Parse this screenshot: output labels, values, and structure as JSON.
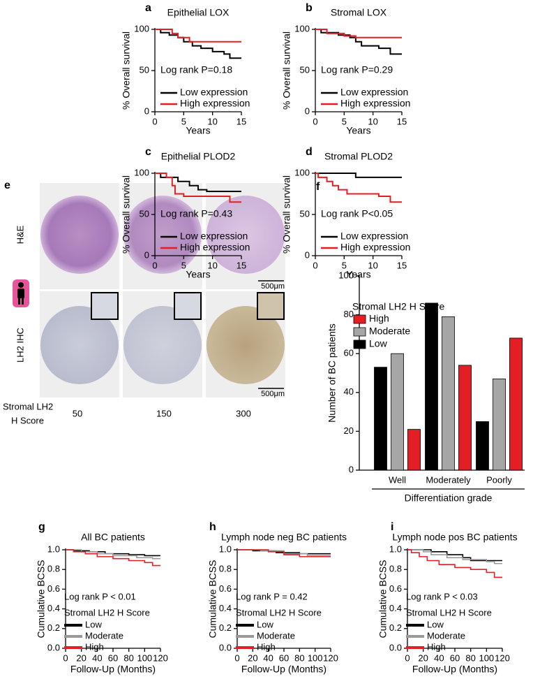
{
  "chart_data": [
    {
      "panel": "a",
      "type": "line",
      "title": "Epithelial LOX",
      "xlabel": "Years",
      "ylabel": "% Overall survival",
      "annotation": "Log rank P=0.18",
      "xlim": [
        0,
        15
      ],
      "xticks": [
        0,
        5,
        10,
        15
      ],
      "ylim": [
        0,
        100
      ],
      "yticks": [
        0,
        50,
        100
      ],
      "series": [
        {
          "name": "Low expression",
          "color": "#000000",
          "x": [
            0,
            1,
            1,
            2.5,
            2.5,
            4,
            4,
            5,
            5,
            6.5,
            6.5,
            8,
            8,
            10,
            10,
            12,
            12,
            13,
            13,
            15
          ],
          "values": [
            100,
            100,
            96,
            96,
            93,
            93,
            90,
            90,
            85,
            85,
            80,
            80,
            77,
            77,
            73,
            73,
            70,
            70,
            65,
            65
          ]
        },
        {
          "name": "High expression",
          "color": "#e31e24",
          "x": [
            0,
            3,
            3,
            4,
            4,
            6,
            6,
            15
          ],
          "values": [
            100,
            100,
            95,
            95,
            90,
            90,
            85,
            85
          ]
        }
      ]
    },
    {
      "panel": "b",
      "type": "line",
      "title": "Stromal LOX",
      "xlabel": "Years",
      "ylabel": "% Overall survival",
      "annotation": "Log rank P=0.29",
      "xlim": [
        0,
        15
      ],
      "xticks": [
        0,
        5,
        10,
        15
      ],
      "ylim": [
        0,
        100
      ],
      "yticks": [
        0,
        50,
        100
      ],
      "series": [
        {
          "name": "Low expression",
          "color": "#000000",
          "x": [
            0,
            1,
            1,
            4,
            4,
            6,
            6,
            7,
            7,
            8,
            8,
            11,
            11,
            13,
            13,
            15
          ],
          "values": [
            100,
            100,
            96,
            96,
            93,
            93,
            90,
            90,
            85,
            85,
            80,
            80,
            77,
            77,
            70,
            70
          ]
        },
        {
          "name": "High expression",
          "color": "#e31e24",
          "x": [
            0,
            2,
            2,
            5,
            5,
            7,
            7,
            15
          ],
          "values": [
            100,
            100,
            95,
            95,
            92,
            92,
            90,
            90
          ]
        }
      ]
    },
    {
      "panel": "c",
      "type": "line",
      "title": "Epithelial PLOD2",
      "xlabel": "Years",
      "ylabel": "% Overall survival",
      "annotation": "Log rank P=0.43",
      "xlim": [
        0,
        15
      ],
      "xticks": [
        0,
        5,
        10,
        15
      ],
      "ylim": [
        0,
        100
      ],
      "yticks": [
        0,
        50,
        100
      ],
      "series": [
        {
          "name": "Low expression",
          "color": "#000000",
          "x": [
            0,
            1,
            1,
            4,
            4,
            6,
            6,
            7.5,
            7.5,
            9,
            9,
            15
          ],
          "values": [
            100,
            100,
            95,
            95,
            90,
            90,
            85,
            85,
            80,
            80,
            78,
            78
          ]
        },
        {
          "name": "High expression",
          "color": "#e31e24",
          "x": [
            0,
            2,
            2,
            3,
            3,
            3.5,
            3.5,
            5,
            5,
            13,
            13,
            15
          ],
          "values": [
            100,
            100,
            95,
            95,
            85,
            85,
            75,
            75,
            72,
            72,
            65,
            65
          ]
        }
      ]
    },
    {
      "panel": "d",
      "type": "line",
      "title": "Stromal PLOD2",
      "xlabel": "Years",
      "ylabel": "% Overall survival",
      "annotation": "Log rank P<0.05",
      "xlim": [
        0,
        15
      ],
      "xticks": [
        0,
        5,
        10,
        15
      ],
      "ylim": [
        0,
        100
      ],
      "yticks": [
        0,
        50,
        100
      ],
      "series": [
        {
          "name": "Low expression",
          "color": "#000000",
          "x": [
            0,
            7,
            7,
            15
          ],
          "values": [
            100,
            100,
            95,
            95
          ]
        },
        {
          "name": "High expression",
          "color": "#e31e24",
          "x": [
            0,
            0.5,
            0.5,
            2,
            2,
            3,
            3,
            4,
            4,
            5.5,
            5.5,
            11,
            11,
            13,
            13,
            15
          ],
          "values": [
            100,
            100,
            95,
            95,
            90,
            90,
            85,
            85,
            80,
            80,
            75,
            75,
            72,
            72,
            65,
            65
          ]
        }
      ]
    },
    {
      "panel": "f",
      "type": "bar",
      "legend_title": "Stromal LH2 H Score",
      "xlabel": "Differentiation grade",
      "ylabel": "Number of BC patients",
      "categories": [
        "Well",
        "Moderately",
        "Poorly"
      ],
      "ylim": [
        0,
        100
      ],
      "yticks": [
        0,
        20,
        40,
        60,
        80,
        100
      ],
      "series": [
        {
          "name": "High",
          "color": "#e31e24",
          "values": [
            21,
            54,
            68
          ]
        },
        {
          "name": "Moderate",
          "color": "#a6a6a6",
          "values": [
            60,
            79,
            47
          ]
        },
        {
          "name": "Low",
          "color": "#000000",
          "values": [
            53,
            86,
            25
          ]
        }
      ]
    },
    {
      "panel": "g",
      "type": "line",
      "title": "All BC patients",
      "xlabel": "Follow-Up (Months)",
      "ylabel": "Cumulative BCSS",
      "annotation": "Log rank P < 0.01",
      "legend_title": "Stromal LH2 H Score",
      "xlim": [
        0,
        120
      ],
      "xticks": [
        0,
        20,
        40,
        60,
        80,
        100,
        120
      ],
      "ylim": [
        0,
        1
      ],
      "yticks": [
        {
          "value": 0,
          "label": "0.0"
        },
        0.2,
        0.4,
        0.6,
        0.8,
        {
          "value": 1,
          "label": "1.0"
        }
      ],
      "series": [
        {
          "name": "Low",
          "color": "#000000",
          "x": [
            0,
            10,
            10,
            30,
            30,
            50,
            50,
            80,
            80,
            100,
            100,
            120
          ],
          "values": [
            1,
            1,
            0.99,
            0.99,
            0.98,
            0.98,
            0.96,
            0.96,
            0.95,
            0.95,
            0.94,
            0.94
          ]
        },
        {
          "name": "Moderate",
          "color": "#999999",
          "x": [
            0,
            20,
            20,
            40,
            40,
            60,
            60,
            90,
            90,
            110,
            110,
            120
          ],
          "values": [
            1,
            1,
            0.98,
            0.98,
            0.96,
            0.96,
            0.94,
            0.94,
            0.92,
            0.92,
            0.91,
            0.91
          ]
        },
        {
          "name": "High",
          "color": "#e31e24",
          "x": [
            0,
            10,
            10,
            25,
            25,
            40,
            40,
            60,
            60,
            80,
            80,
            100,
            100,
            110,
            110,
            120
          ],
          "values": [
            1,
            1,
            0.98,
            0.98,
            0.96,
            0.96,
            0.93,
            0.93,
            0.91,
            0.91,
            0.89,
            0.89,
            0.87,
            0.87,
            0.84,
            0.84
          ]
        }
      ]
    },
    {
      "panel": "h",
      "type": "line",
      "title": "Lymph node neg BC patients",
      "xlabel": "Follow-Up (Months)",
      "ylabel": "Cumulative BCSS",
      "annotation": "Log rank P = 0.42",
      "legend_title": "Stromal LH2 H Score",
      "xlim": [
        0,
        120
      ],
      "xticks": [
        0,
        20,
        40,
        60,
        80,
        100,
        120
      ],
      "ylim": [
        0,
        1
      ],
      "yticks": [
        {
          "value": 0,
          "label": "0.0"
        },
        0.2,
        0.4,
        0.6,
        0.8,
        {
          "value": 1,
          "label": "1.0"
        }
      ],
      "series": [
        {
          "name": "Low",
          "color": "#000000",
          "x": [
            0,
            20,
            20,
            50,
            50,
            80,
            80,
            120
          ],
          "values": [
            1,
            1,
            0.99,
            0.99,
            0.97,
            0.97,
            0.96,
            0.96
          ]
        },
        {
          "name": "Moderate",
          "color": "#999999",
          "x": [
            0,
            30,
            30,
            60,
            60,
            90,
            90,
            120
          ],
          "values": [
            1,
            1,
            0.99,
            0.99,
            0.96,
            0.96,
            0.94,
            0.94
          ]
        },
        {
          "name": "High",
          "color": "#e31e24",
          "x": [
            0,
            40,
            40,
            60,
            60,
            80,
            80,
            120
          ],
          "values": [
            1,
            1,
            0.98,
            0.98,
            0.95,
            0.95,
            0.93,
            0.93
          ]
        }
      ]
    },
    {
      "panel": "i",
      "type": "line",
      "title": "Lymph node pos BC patients",
      "xlabel": "Follow-Up (Months)",
      "ylabel": "Cumulative BCSS",
      "annotation": "Log rank P < 0.03",
      "legend_title": "Stromal LH2 H Score",
      "xlim": [
        0,
        120
      ],
      "xticks": [
        0,
        20,
        40,
        60,
        80,
        100,
        120
      ],
      "ylim": [
        0,
        1
      ],
      "yticks": [
        {
          "value": 0,
          "label": "0.0"
        },
        0.2,
        0.4,
        0.6,
        0.8,
        {
          "value": 1,
          "label": "1.0"
        }
      ],
      "series": [
        {
          "name": "Low",
          "color": "#000000",
          "x": [
            0,
            30,
            30,
            50,
            50,
            70,
            70,
            80,
            80,
            120
          ],
          "values": [
            1,
            1,
            0.98,
            0.98,
            0.95,
            0.95,
            0.92,
            0.92,
            0.89,
            0.89
          ]
        },
        {
          "name": "Moderate",
          "color": "#999999",
          "x": [
            0,
            20,
            20,
            30,
            30,
            50,
            50,
            70,
            70,
            100,
            100,
            110,
            110,
            120
          ],
          "values": [
            1,
            1,
            0.98,
            0.98,
            0.95,
            0.95,
            0.92,
            0.92,
            0.9,
            0.9,
            0.88,
            0.88,
            0.86,
            0.86
          ]
        },
        {
          "name": "High",
          "color": "#e31e24",
          "x": [
            0,
            5,
            5,
            15,
            15,
            25,
            25,
            40,
            40,
            60,
            60,
            80,
            80,
            100,
            100,
            110,
            110,
            120
          ],
          "values": [
            1,
            1,
            0.97,
            0.97,
            0.93,
            0.93,
            0.89,
            0.89,
            0.85,
            0.85,
            0.82,
            0.82,
            0.8,
            0.8,
            0.77,
            0.77,
            0.72,
            0.72
          ]
        }
      ]
    }
  ],
  "panel_e": {
    "panel": "e",
    "rows": [
      "H&E",
      "LH2 IHC"
    ],
    "scale_bars": [
      "500μm",
      "500μm"
    ],
    "score_label": [
      "Stromal LH2",
      "H Score"
    ],
    "scores": [
      "50",
      "150",
      "300"
    ]
  }
}
